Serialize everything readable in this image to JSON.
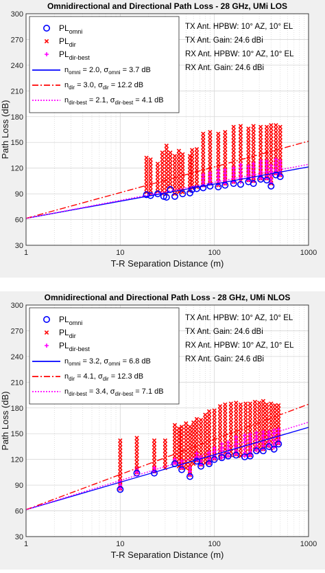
{
  "chart_data": [
    {
      "type": "scatter",
      "title": "Omnidirectional and Directional Path Loss - 28 GHz, UMi LOS",
      "xlabel": "T-R Separation Distance (m)",
      "ylabel": "Path Loss (dB)",
      "x_scale": "log",
      "xlim": [
        1,
        1000
      ],
      "ylim": [
        30,
        300
      ],
      "x_ticks": [
        "1",
        "10",
        "100",
        "1000"
      ],
      "y_ticks": [
        "30",
        "60",
        "90",
        "120",
        "150",
        "180",
        "210",
        "240",
        "270",
        "300"
      ],
      "grid": true,
      "legend_position": "top-left",
      "legend": [
        {
          "key": "omni",
          "base": "PL",
          "sub": "omni",
          "marker": "circle",
          "color": "#0000ff"
        },
        {
          "key": "dir",
          "base": "PL",
          "sub": "dir",
          "marker": "x",
          "color": "#ff0000"
        },
        {
          "key": "best",
          "base": "PL",
          "sub": "dir-best",
          "marker": "plus",
          "color": "#ff00ff"
        },
        {
          "key": "fit_omni",
          "parts": [
            "n",
            "omni",
            " = 2.0, σ",
            "omni",
            " = 3.7 dB"
          ],
          "line": "solid",
          "color": "#0000ff"
        },
        {
          "key": "fit_dir",
          "parts": [
            "n",
            "dir",
            " = 3.0, σ",
            "dir",
            " = 12.2 dB"
          ],
          "line": "dashdot",
          "color": "#ff0000"
        },
        {
          "key": "fit_best",
          "parts": [
            "n",
            "dir-best",
            " = 2.1, σ",
            "dir-best",
            " = 4.1 dB"
          ],
          "line": "dotted",
          "color": "#ff00ff"
        }
      ],
      "annotations": [
        "TX Ant. HPBW: 10° AZ, 10° EL",
        "TX Ant. Gain: 24.6 dBi",
        "RX Ant. HPBW: 10° AZ, 10° EL",
        "RX Ant. Gain: 24.6 dBi"
      ],
      "fit_lines": [
        {
          "name": "fit_omni",
          "d0": 1,
          "pl0": 61.4,
          "n": 2.0,
          "color": "#0000ff",
          "style": "solid"
        },
        {
          "name": "fit_dir",
          "d0": 1,
          "pl0": 61.4,
          "n": 3.0,
          "color": "#ff0000",
          "style": "dashdot"
        },
        {
          "name": "fit_best",
          "d0": 1,
          "pl0": 61.4,
          "n": 2.1,
          "color": "#ff00ff",
          "style": "dotted"
        }
      ],
      "series": [
        {
          "name": "omni",
          "marker": "circle",
          "color": "#0000ff",
          "points": [
            [
              19,
              89
            ],
            [
              21,
              88
            ],
            [
              25,
              90
            ],
            [
              29,
              87
            ],
            [
              31,
              86
            ],
            [
              34,
              95
            ],
            [
              38,
              87
            ],
            [
              46,
              90
            ],
            [
              55,
              91
            ],
            [
              58,
              95
            ],
            [
              65,
              96
            ],
            [
              76,
              97
            ],
            [
              90,
              99
            ],
            [
              110,
              98
            ],
            [
              130,
              100
            ],
            [
              160,
              102
            ],
            [
              190,
              101
            ],
            [
              230,
              104
            ],
            [
              260,
              102
            ],
            [
              310,
              107
            ],
            [
              360,
              106
            ],
            [
              400,
              99
            ],
            [
              450,
              112
            ],
            [
              500,
              110
            ]
          ]
        },
        {
          "name": "dir",
          "marker": "x",
          "color": "#ff0000",
          "columns": [
            [
              19,
              92,
              134
            ],
            [
              21,
              90,
              130
            ],
            [
              25,
              93,
              128
            ],
            [
              28,
              90,
              140
            ],
            [
              31,
              90,
              146
            ],
            [
              34,
              98,
              138
            ],
            [
              38,
              90,
              135
            ],
            [
              42,
              92,
              140
            ],
            [
              46,
              92,
              138
            ],
            [
              55,
              94,
              135
            ],
            [
              58,
              97,
              142
            ],
            [
              65,
              98,
              145
            ],
            [
              76,
              100,
              160
            ],
            [
              90,
              102,
              165
            ],
            [
              110,
              100,
              160
            ],
            [
              130,
              102,
              165
            ],
            [
              160,
              104,
              170
            ],
            [
              190,
              105,
              172
            ],
            [
              230,
              106,
              168
            ],
            [
              260,
              105,
              172
            ],
            [
              310,
              108,
              170
            ],
            [
              360,
              108,
              170
            ],
            [
              400,
              102,
              172
            ],
            [
              450,
              114,
              170
            ],
            [
              500,
              112,
              168
            ]
          ]
        },
        {
          "name": "best",
          "marker": "plus",
          "color": "#ff00ff",
          "columns": [
            [
              76,
              100,
              112
            ],
            [
              90,
              102,
              115
            ],
            [
              110,
              101,
              118
            ],
            [
              130,
              102,
              120
            ],
            [
              160,
              104,
              122
            ],
            [
              190,
              104,
              124
            ],
            [
              230,
              106,
              124
            ],
            [
              260,
              105,
              125
            ],
            [
              310,
              108,
              128
            ],
            [
              360,
              108,
              130
            ],
            [
              400,
              103,
              126
            ],
            [
              450,
              114,
              130
            ],
            [
              500,
              112,
              130
            ]
          ]
        }
      ]
    },
    {
      "type": "scatter",
      "title": "Omnidirectional and Directional Path Loss - 28 GHz, UMi NLOS",
      "xlabel": "T-R Separation Distance (m)",
      "ylabel": "Path Loss (dB)",
      "x_scale": "log",
      "xlim": [
        1,
        1000
      ],
      "ylim": [
        30,
        300
      ],
      "x_ticks": [
        "1",
        "10",
        "100",
        "1000"
      ],
      "y_ticks": [
        "30",
        "60",
        "90",
        "120",
        "150",
        "180",
        "210",
        "240",
        "270",
        "300"
      ],
      "grid": true,
      "legend_position": "top-left",
      "legend": [
        {
          "key": "omni",
          "base": "PL",
          "sub": "omni",
          "marker": "circle",
          "color": "#0000ff"
        },
        {
          "key": "dir",
          "base": "PL",
          "sub": "dir",
          "marker": "x",
          "color": "#ff0000"
        },
        {
          "key": "best",
          "base": "PL",
          "sub": "dir-best",
          "marker": "plus",
          "color": "#ff00ff"
        },
        {
          "key": "fit_omni",
          "parts": [
            "n",
            "omni",
            " = 3.2, σ",
            "omni",
            " = 6.8 dB"
          ],
          "line": "solid",
          "color": "#0000ff"
        },
        {
          "key": "fit_dir",
          "parts": [
            "n",
            "dir",
            " = 4.1, σ",
            "dir",
            " = 12.3 dB"
          ],
          "line": "dashdot",
          "color": "#ff0000"
        },
        {
          "key": "fit_best",
          "parts": [
            "n",
            "dir-best",
            " = 3.4, σ",
            "dir-best",
            " = 7.1 dB"
          ],
          "line": "dotted",
          "color": "#ff00ff"
        }
      ],
      "annotations": [
        "TX Ant. HPBW: 10° AZ, 10° EL",
        "TX Ant. Gain: 24.6 dBi",
        "RX Ant. HPBW: 10° AZ, 10° EL",
        "RX Ant. Gain: 24.6 dBi"
      ],
      "fit_lines": [
        {
          "name": "fit_omni",
          "d0": 1,
          "pl0": 61.4,
          "n": 3.2,
          "color": "#0000ff",
          "style": "solid"
        },
        {
          "name": "fit_dir",
          "d0": 1,
          "pl0": 61.4,
          "n": 4.1,
          "color": "#ff0000",
          "style": "dashdot"
        },
        {
          "name": "fit_best",
          "d0": 1,
          "pl0": 61.4,
          "n": 3.4,
          "color": "#ff00ff",
          "style": "dotted"
        }
      ],
      "series": [
        {
          "name": "omni",
          "marker": "circle",
          "color": "#0000ff",
          "points": [
            [
              10,
              85
            ],
            [
              15,
              104
            ],
            [
              23,
              104
            ],
            [
              38,
              115
            ],
            [
              45,
              108
            ],
            [
              55,
              100
            ],
            [
              65,
              118
            ],
            [
              72,
              112
            ],
            [
              88,
              115
            ],
            [
              100,
              120
            ],
            [
              120,
              122
            ],
            [
              140,
              124
            ],
            [
              170,
              125
            ],
            [
              210,
              123
            ],
            [
              240,
              124
            ],
            [
              280,
              130
            ],
            [
              330,
              130
            ],
            [
              380,
              135
            ],
            [
              430,
              132
            ],
            [
              480,
              138
            ]
          ]
        },
        {
          "name": "dir",
          "marker": "x",
          "color": "#ff0000",
          "columns": [
            [
              10,
              86,
              143
            ],
            [
              15,
              105,
              148
            ],
            [
              23,
              106,
              145
            ],
            [
              30,
              110,
              142
            ],
            [
              38,
              116,
              160
            ],
            [
              42,
              112,
              158
            ],
            [
              45,
              110,
              158
            ],
            [
              50,
              110,
              162
            ],
            [
              55,
              102,
              160
            ],
            [
              60,
              115,
              165
            ],
            [
              65,
              119,
              170
            ],
            [
              72,
              114,
              168
            ],
            [
              80,
              116,
              172
            ],
            [
              88,
              116,
              176
            ],
            [
              100,
              121,
              180
            ],
            [
              115,
              122,
              182
            ],
            [
              130,
              124,
              184
            ],
            [
              150,
              125,
              185
            ],
            [
              170,
              126,
              186
            ],
            [
              190,
              124,
              184
            ],
            [
              215,
              125,
              186
            ],
            [
              240,
              125,
              188
            ],
            [
              270,
              131,
              187
            ],
            [
              300,
              130,
              188
            ],
            [
              330,
              132,
              188
            ],
            [
              360,
              136,
              186
            ],
            [
              400,
              133,
              186
            ],
            [
              440,
              135,
              186
            ],
            [
              480,
              139,
              185
            ]
          ]
        },
        {
          "name": "best",
          "marker": "plus",
          "color": "#ff00ff",
          "columns": [
            [
              10,
              86,
              95
            ],
            [
              15,
              105,
              110
            ],
            [
              23,
              106,
              112
            ],
            [
              38,
              116,
              122
            ],
            [
              45,
              110,
              118
            ],
            [
              55,
              102,
              112
            ],
            [
              65,
              119,
              128
            ],
            [
              72,
              114,
              124
            ],
            [
              88,
              116,
              130
            ],
            [
              100,
              121,
              135
            ],
            [
              120,
              122,
              138
            ],
            [
              140,
              124,
              140
            ],
            [
              170,
              126,
              146
            ],
            [
              210,
              124,
              148
            ],
            [
              240,
              125,
              150
            ],
            [
              280,
              131,
              152
            ],
            [
              330,
              132,
              153
            ],
            [
              380,
              136,
              155
            ],
            [
              430,
              134,
              156
            ],
            [
              480,
              139,
              158
            ]
          ]
        }
      ]
    }
  ]
}
